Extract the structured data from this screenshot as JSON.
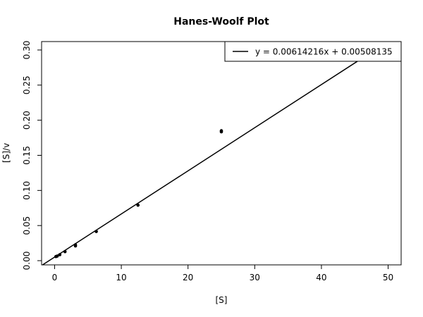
{
  "chart_data": {
    "type": "scatter",
    "title": "Hanes-Woolf Plot",
    "xlabel": "[S]",
    "ylabel": "[S]/v",
    "xlim": [
      -1.95,
      51.95
    ],
    "ylim": [
      -0.006,
      0.312
    ],
    "x_ticks": [
      0,
      10,
      20,
      30,
      40,
      50
    ],
    "y_ticks": [
      0.0,
      0.05,
      0.1,
      0.15,
      0.2,
      0.25,
      0.3
    ],
    "x_tick_labels": [
      "0",
      "10",
      "20",
      "30",
      "40",
      "50"
    ],
    "y_tick_labels": [
      "0.00",
      "0.05",
      "0.10",
      "0.15",
      "0.20",
      "0.25",
      "0.30"
    ],
    "grid": false,
    "legend_position": "top-right",
    "series": [
      {
        "x": [
          0.195,
          0.39,
          0.78,
          1.56,
          3.125,
          3.125,
          6.25,
          12.5,
          25,
          25
        ],
        "y": [
          0.0058,
          0.0065,
          0.0085,
          0.0128,
          0.021,
          0.0225,
          0.0415,
          0.079,
          0.1835,
          0.185
        ]
      }
    ],
    "fit_line": {
      "label": "y = 0.00614216x + 0.00508135",
      "slope": 0.00614216,
      "intercept": 0.00508135
    }
  }
}
